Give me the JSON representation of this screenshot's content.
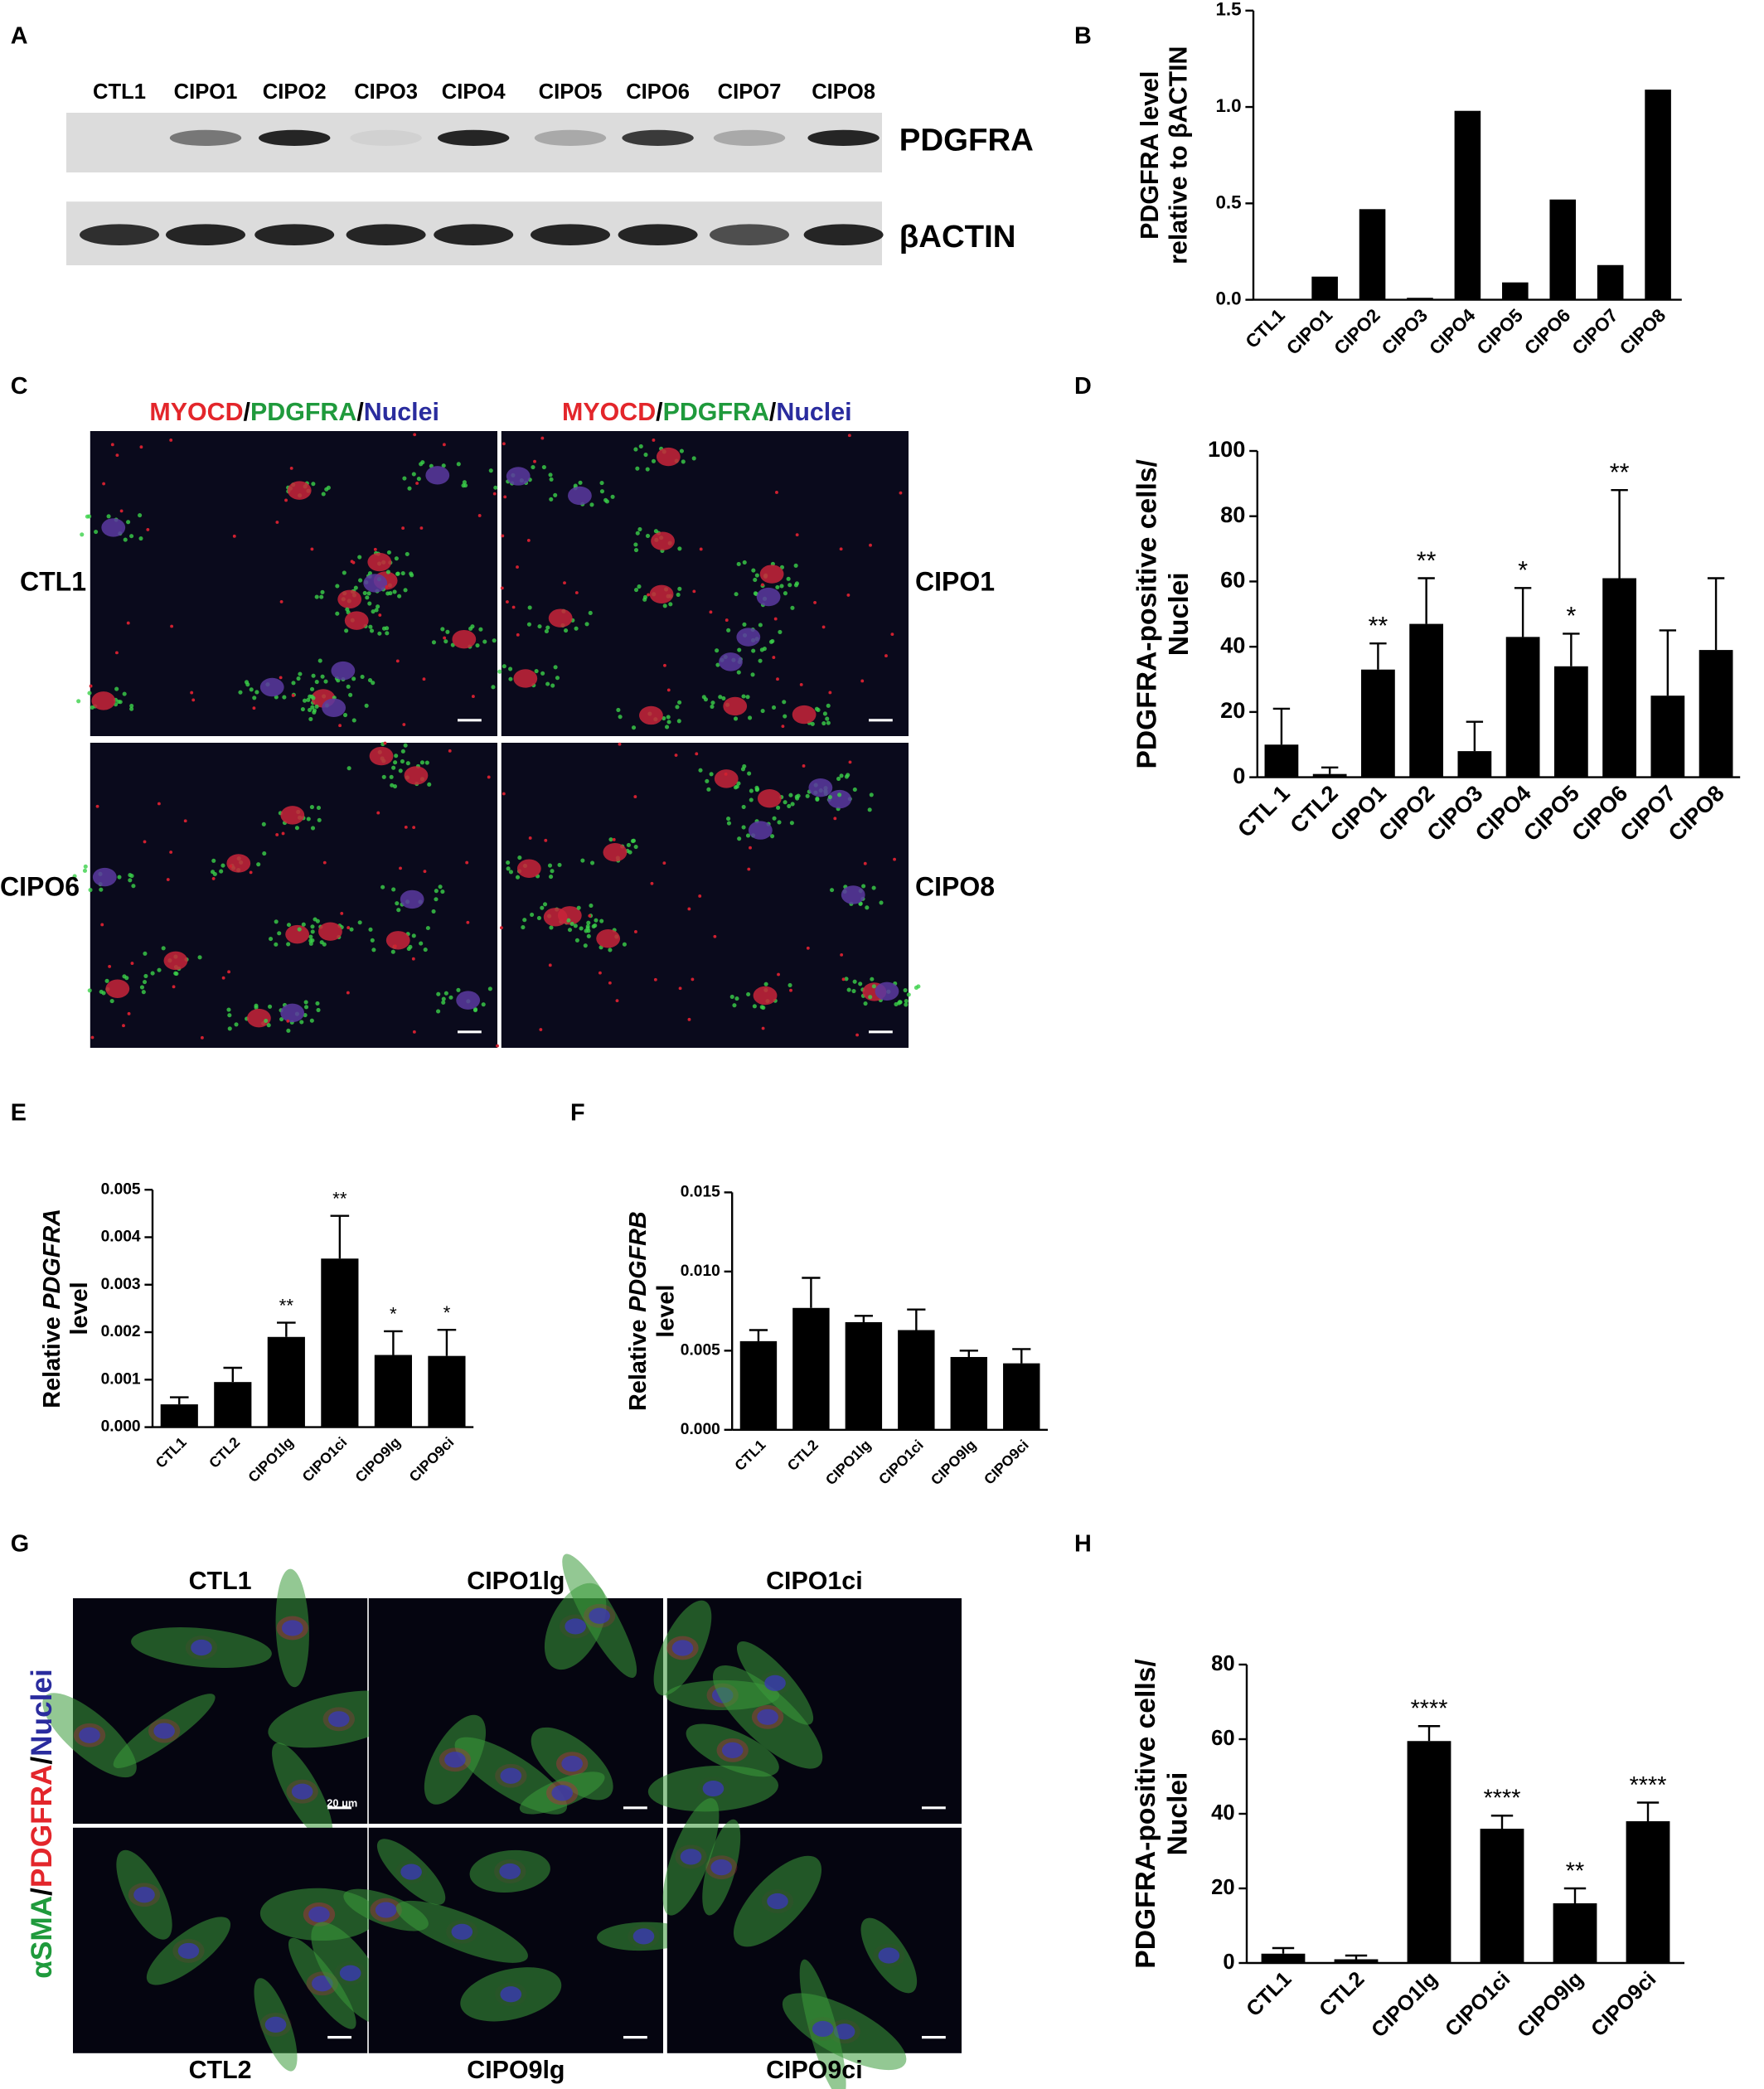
{
  "panel_labels": [
    "A",
    "B",
    "C",
    "D",
    "E",
    "F",
    "G",
    "H"
  ],
  "panel_a": {
    "lanes": [
      "CTL1",
      "CIPO1",
      "CIPO2",
      "CIPO3",
      "CIPO4",
      "CIPO5",
      "CIPO6",
      "CIPO7",
      "CIPO8"
    ],
    "rows": [
      "PDGFRA",
      "βACTIN"
    ]
  },
  "panel_c": {
    "header": [
      {
        "text": "MYOCD",
        "color": "#e3262b"
      },
      {
        "text": "/"
      },
      {
        "text": "PDGFRA",
        "color": "#1f9a3c"
      },
      {
        "text": "/"
      },
      {
        "text": "Nuclei",
        "color": "#2a2c9e"
      }
    ],
    "images": [
      "CTL1",
      "CIPO1",
      "CIPO6",
      "CIPO8"
    ]
  },
  "panel_g": {
    "side_label": [
      {
        "text": "αSMA",
        "color": "#1f9a3c"
      },
      {
        "text": "/"
      },
      {
        "text": "PDGFRA",
        "color": "#e3262b"
      },
      {
        "text": "/"
      },
      {
        "text": "Nuclei",
        "color": "#2a2c9e"
      }
    ],
    "images": [
      "CTL1",
      "CIPO1lg",
      "CIPO1ci",
      "CTL2",
      "CIPO9lg",
      "CIPO9ci"
    ],
    "scale_bar": "20 μm"
  },
  "chart_data": [
    {
      "type": "bar",
      "color": "#000000",
      "ylabel_lines": [
        [
          "PDGFRA level"
        ],
        [
          "relative to βACTIN"
        ]
      ],
      "categories": [
        "CTL1",
        "CIPO1",
        "CIPO2",
        "CIPO3",
        "CIPO4",
        "CIPO5",
        "CIPO6",
        "CIPO7",
        "CIPO8"
      ],
      "values": [
        0,
        0.12,
        0.47,
        0.01,
        0.98,
        0.09,
        0.52,
        0.18,
        1.09
      ],
      "ylim": [
        0,
        1.5
      ],
      "yticks": [
        {
          "value": 0,
          "label": "0.0"
        },
        0.5,
        {
          "value": 1,
          "label": "1.0"
        },
        1.5
      ]
    },
    {
      "type": "bar",
      "color": "#000000",
      "ylabel_lines": [
        [
          "PDGFRA-positive cells/"
        ],
        [
          "Nuclei"
        ]
      ],
      "categories": [
        "CTL 1",
        "CTL2",
        "CIPO1",
        "CIPO2",
        "CIPO3",
        "CIPO4",
        "CIPO5",
        "CIPO6",
        "CIPO7",
        "CIPO8"
      ],
      "values": [
        10,
        1,
        33,
        47,
        8,
        43,
        34,
        61,
        25,
        39
      ],
      "errors": [
        11,
        2,
        8,
        14,
        9,
        15,
        10,
        27,
        20,
        22
      ],
      "significance": [
        null,
        null,
        "**",
        "**",
        null,
        "*",
        "*",
        "**",
        null,
        null
      ],
      "ylim": [
        0,
        100
      ],
      "yticks": [
        0,
        20,
        40,
        60,
        80,
        100
      ]
    },
    {
      "type": "bar",
      "color": "#000000",
      "ylabel_lines": [
        [
          "Relative",
          {
            "text": "PDGFRA",
            "style": "italic"
          }
        ],
        [
          "level"
        ]
      ],
      "categories": [
        "CTL1",
        "CTL2",
        "CIPO1lg",
        "CIPO1ci",
        "CIPO9lg",
        "CIPO9ci"
      ],
      "values": [
        0.00048,
        0.00095,
        0.0019,
        0.00355,
        0.00152,
        0.0015
      ],
      "errors": [
        0.00015,
        0.0003,
        0.0003,
        0.0009,
        0.0005,
        0.00055
      ],
      "significance": [
        null,
        null,
        "**",
        "**",
        "*",
        "*"
      ],
      "ylim": [
        0,
        0.005
      ],
      "yticks": [
        {
          "value": 0,
          "label": "0.000"
        },
        0.001,
        0.002,
        0.003,
        0.004,
        0.005
      ]
    },
    {
      "type": "bar",
      "color": "#000000",
      "ylabel_lines": [
        [
          "Relative",
          {
            "text": "PDGFRB",
            "style": "italic"
          }
        ],
        [
          "level"
        ]
      ],
      "categories": [
        "CTL1",
        "CTL2",
        "CIPO1lg",
        "CIPO1ci",
        "CIPO9lg",
        "CIPO9ci"
      ],
      "values": [
        0.0056,
        0.0077,
        0.0068,
        0.0063,
        0.0046,
        0.0042
      ],
      "errors": [
        0.0007,
        0.0019,
        0.0004,
        0.0013,
        0.0004,
        0.0009
      ],
      "ylim": [
        0,
        0.015
      ],
      "yticks": [
        {
          "value": 0,
          "label": "0.000"
        },
        0.005,
        {
          "value": 0.01,
          "label": "0.010"
        },
        0.015
      ]
    },
    {
      "type": "bar",
      "color": "#000000",
      "ylabel_lines": [
        [
          "PDGFRA-positive cells/"
        ],
        [
          "Nuclei"
        ]
      ],
      "categories": [
        "CTL1",
        "CTL2",
        "CIPO1lg",
        "CIPO1ci",
        "CIPO9lg",
        "CIPO9ci"
      ],
      "values": [
        2.5,
        1,
        59.5,
        36,
        16,
        38
      ],
      "errors": [
        1.5,
        1,
        4,
        3.5,
        4,
        5
      ],
      "significance": [
        null,
        null,
        "****",
        "****",
        "**",
        "****"
      ],
      "ylim": [
        0,
        80
      ],
      "yticks": [
        0,
        20,
        40,
        60,
        80
      ]
    }
  ]
}
